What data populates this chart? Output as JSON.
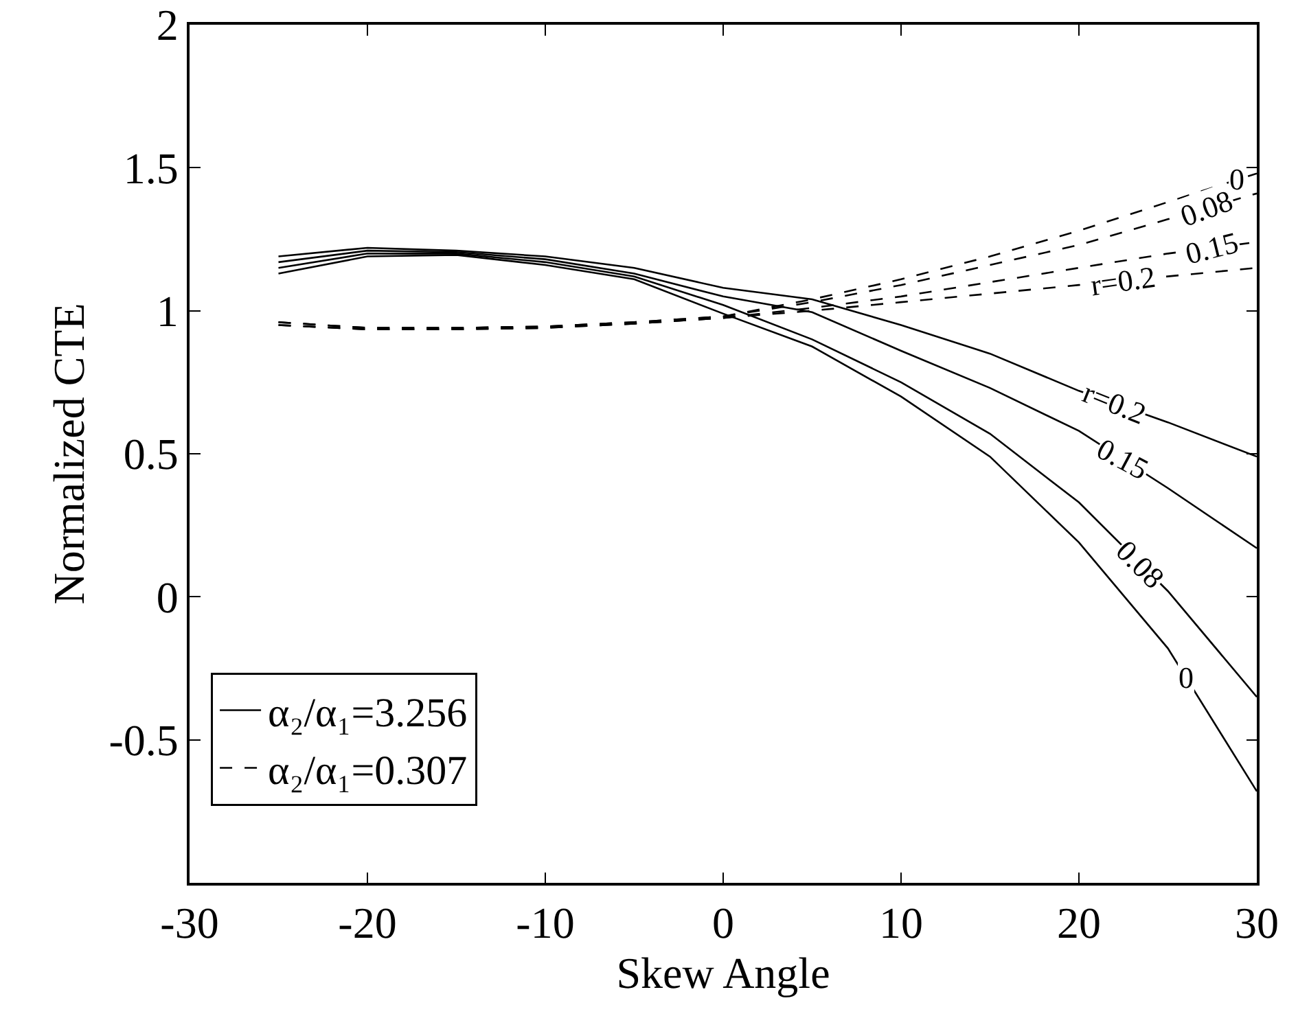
{
  "chart_data": {
    "type": "line",
    "xlabel": "Skew Angle",
    "ylabel": "Normalized CTE",
    "x": [
      -25,
      -20,
      -15,
      -10,
      -5,
      0,
      5,
      10,
      15,
      20,
      25,
      30
    ],
    "series": [
      {
        "name": "α₂/α₁=3.256",
        "color": "#000000",
        "line_style": "solid",
        "values": [
          1.19,
          1.22,
          1.21,
          1.19,
          1.15,
          1.08,
          1.04,
          0.95,
          0.85,
          0.72,
          0.61,
          0.49
        ]
      },
      {
        "color": "#000000",
        "line_style": "solid",
        "values": [
          1.17,
          1.21,
          1.205,
          1.18,
          1.13,
          1.05,
          0.995,
          0.86,
          0.73,
          0.58,
          0.38,
          0.17
        ]
      },
      {
        "color": "#000000",
        "line_style": "solid",
        "values": [
          1.15,
          1.2,
          1.2,
          1.17,
          1.12,
          1.02,
          0.9,
          0.75,
          0.57,
          0.33,
          0.02,
          -0.35
        ]
      },
      {
        "color": "#000000",
        "line_style": "solid",
        "values": [
          1.13,
          1.19,
          1.195,
          1.16,
          1.11,
          0.99,
          0.875,
          0.7,
          0.49,
          0.19,
          -0.18,
          -0.68
        ]
      },
      {
        "name": "α₂/α₁=0.307",
        "color": "#000000",
        "line_style": "dashed",
        "values": [
          0.96,
          0.94,
          0.94,
          0.945,
          0.96,
          0.98,
          1.04,
          1.11,
          1.19,
          1.28,
          1.38,
          1.48
        ]
      },
      {
        "color": "#000000",
        "line_style": "dashed",
        "values": [
          0.96,
          0.94,
          0.94,
          0.945,
          0.96,
          0.98,
          1.03,
          1.09,
          1.16,
          1.23,
          1.32,
          1.41
        ]
      },
      {
        "color": "#000000",
        "line_style": "dashed",
        "values": [
          0.95,
          0.935,
          0.935,
          0.94,
          0.955,
          0.975,
          1.01,
          1.05,
          1.1,
          1.15,
          1.2,
          1.24
        ]
      },
      {
        "color": "#000000",
        "line_style": "dashed",
        "values": [
          0.95,
          0.935,
          0.935,
          0.94,
          0.955,
          0.975,
          1.0,
          1.03,
          1.06,
          1.09,
          1.12,
          1.15
        ]
      }
    ],
    "annotations": [
      {
        "text": "r=0.2",
        "x": 22,
        "y": 0.68
      },
      {
        "text": "0.15",
        "x": 22.5,
        "y": 0.48
      },
      {
        "text": "0.08",
        "x": 23.5,
        "y": 0.113
      },
      {
        "text": "0",
        "x": 26,
        "y": -0.28
      },
      {
        "text": "0",
        "x": 28.9,
        "y": 1.458
      },
      {
        "text": "0.08",
        "x": 27.2,
        "y": 1.36
      },
      {
        "text": "0.15",
        "x": 27.5,
        "y": 1.22
      },
      {
        "text": "r=0.2",
        "x": 22.5,
        "y": 1.105
      }
    ],
    "xlim": [
      -30,
      30
    ],
    "xticks": [
      -30,
      -20,
      -10,
      0,
      10,
      20,
      30
    ],
    "ylim": [
      -1,
      2
    ],
    "yticks": [
      {
        "value": -1,
        "label": null
      },
      -0.5,
      0,
      0.5,
      1,
      1.5,
      2
    ],
    "grid": false,
    "legend": "bottom left",
    "marker": "none"
  }
}
